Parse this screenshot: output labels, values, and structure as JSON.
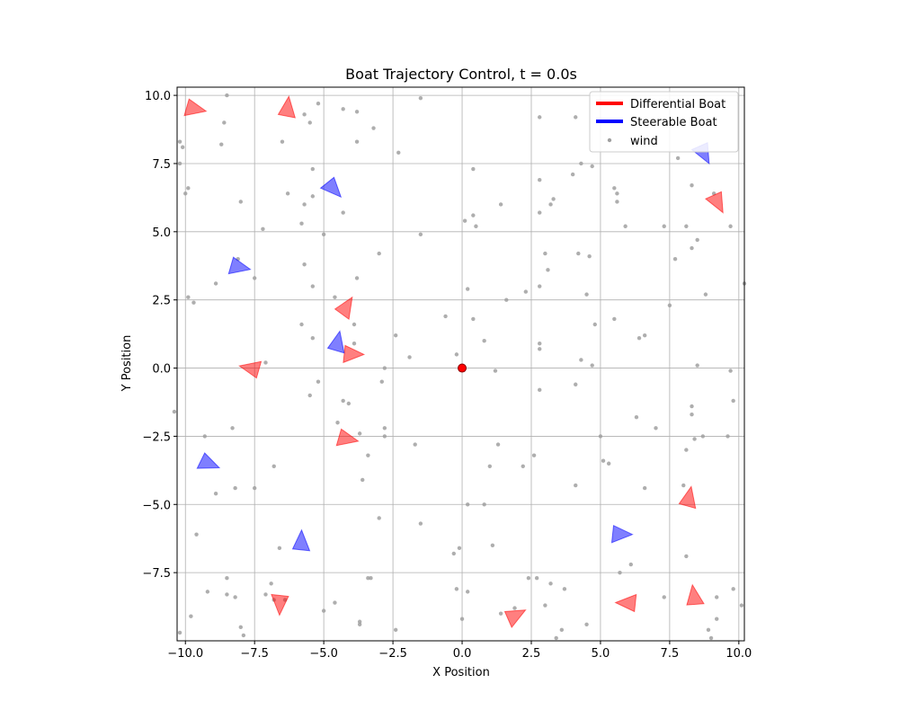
{
  "chart_data": {
    "type": "scatter",
    "title": "Boat Trajectory Control, t = 0.0s",
    "xlabel": "X Position",
    "ylabel": "Y Position",
    "xlim": [
      -10.3,
      10.2
    ],
    "ylim": [
      -10.0,
      10.3
    ],
    "grid": true,
    "xticks": [
      -10,
      -7.5,
      -5,
      -2.5,
      0,
      2.5,
      5,
      7.5,
      10
    ],
    "xtick_labels": [
      "−10.0",
      "−7.5",
      "−5.0",
      "−2.5",
      "0.0",
      "2.5",
      "5.0",
      "7.5",
      "10.0"
    ],
    "yticks": [
      -7.5,
      -5,
      -2.5,
      0,
      2.5,
      5,
      7.5,
      10
    ],
    "ytick_labels": [
      "−7.5",
      "−5.0",
      "−2.5",
      "0.0",
      "2.5",
      "5.0",
      "7.5",
      "10.0"
    ],
    "legend": {
      "placement": "top-right",
      "entries": [
        {
          "label": "Differential Boat",
          "color": "#ff0000",
          "kind": "line"
        },
        {
          "label": "Steerable Boat",
          "color": "#0000ff",
          "kind": "line"
        },
        {
          "label": "wind",
          "color": "#a0a0a0",
          "kind": "point"
        }
      ]
    },
    "origin_marker": {
      "x": 0,
      "y": 0,
      "color": "#ff0000"
    },
    "colors": {
      "differential": "#ff0000",
      "steerable": "#0000ff",
      "wind": "#a0a0a0"
    },
    "series": [
      {
        "name": "Differential Boat",
        "kind": "triangle",
        "points": [
          {
            "x": -9.7,
            "y": 9.5,
            "heading": -10
          },
          {
            "x": -6.3,
            "y": 9.5,
            "heading": 85
          },
          {
            "x": 9.2,
            "y": 6.1,
            "heading": -60
          },
          {
            "x": -4.2,
            "y": 2.2,
            "heading": 60
          },
          {
            "x": -4.0,
            "y": 0.5,
            "heading": 0
          },
          {
            "x": -7.6,
            "y": 0.0,
            "heading": 170
          },
          {
            "x": -4.2,
            "y": -2.6,
            "heading": -10
          },
          {
            "x": 8.2,
            "y": -4.8,
            "heading": 80
          },
          {
            "x": 8.4,
            "y": -8.4,
            "heading": 100
          },
          {
            "x": 6.0,
            "y": -8.6,
            "heading": 180
          },
          {
            "x": 1.9,
            "y": -9.1,
            "heading": 30
          },
          {
            "x": -6.6,
            "y": -8.6,
            "heading": -90
          }
        ]
      },
      {
        "name": "Steerable Boat",
        "kind": "triangle",
        "points": [
          {
            "x": 8.7,
            "y": 7.9,
            "heading": -60
          },
          {
            "x": -4.7,
            "y": 6.6,
            "heading": -45
          },
          {
            "x": -8.1,
            "y": 3.7,
            "heading": -10
          },
          {
            "x": -4.5,
            "y": 0.9,
            "heading": 80
          },
          {
            "x": -9.2,
            "y": -3.5,
            "heading": -20
          },
          {
            "x": -5.8,
            "y": -6.4,
            "heading": 90
          },
          {
            "x": 5.7,
            "y": -6.1,
            "heading": 0
          }
        ]
      },
      {
        "name": "wind",
        "kind": "point",
        "points": [
          {
            "x": -10.2,
            "y": 8.3
          },
          {
            "x": -10.1,
            "y": 8.1
          },
          {
            "x": -10.2,
            "y": 7.5
          },
          {
            "x": -9.9,
            "y": 6.6
          },
          {
            "x": -10.0,
            "y": 6.4
          },
          {
            "x": -8.5,
            "y": 10.0
          },
          {
            "x": -8.6,
            "y": 9.0
          },
          {
            "x": -8.7,
            "y": 8.2
          },
          {
            "x": -7.2,
            "y": 5.1
          },
          {
            "x": -8.0,
            "y": 6.1
          },
          {
            "x": -6.5,
            "y": 8.3
          },
          {
            "x": -5.7,
            "y": 9.3
          },
          {
            "x": -5.5,
            "y": 9.0
          },
          {
            "x": -5.2,
            "y": 9.7
          },
          {
            "x": -4.3,
            "y": 9.5
          },
          {
            "x": -3.8,
            "y": 9.4
          },
          {
            "x": -3.2,
            "y": 8.8
          },
          {
            "x": -3.8,
            "y": 8.3
          },
          {
            "x": -2.3,
            "y": 7.9
          },
          {
            "x": -1.5,
            "y": 9.9
          },
          {
            "x": -5.4,
            "y": 7.3
          },
          {
            "x": -6.3,
            "y": 6.4
          },
          {
            "x": -5.4,
            "y": 6.3
          },
          {
            "x": -5.7,
            "y": 6.0
          },
          {
            "x": -4.3,
            "y": 5.7
          },
          {
            "x": -5.8,
            "y": 5.3
          },
          {
            "x": -5.0,
            "y": 4.9
          },
          {
            "x": -1.5,
            "y": 4.9
          },
          {
            "x": -3.0,
            "y": 4.2
          },
          {
            "x": -8.1,
            "y": 4.0
          },
          {
            "x": -7.5,
            "y": 3.3
          },
          {
            "x": -8.9,
            "y": 3.1
          },
          {
            "x": -9.9,
            "y": 2.6
          },
          {
            "x": -9.7,
            "y": 2.4
          },
          {
            "x": -5.7,
            "y": 3.8
          },
          {
            "x": -3.8,
            "y": 3.3
          },
          {
            "x": -5.4,
            "y": 3.0
          },
          {
            "x": -4.6,
            "y": 2.6
          },
          {
            "x": -5.8,
            "y": 1.6
          },
          {
            "x": -3.9,
            "y": 1.6
          },
          {
            "x": -5.4,
            "y": 1.1
          },
          {
            "x": -2.4,
            "y": 1.2
          },
          {
            "x": -1.9,
            "y": 0.4
          },
          {
            "x": -3.9,
            "y": 0.9
          },
          {
            "x": -7.1,
            "y": 0.2
          },
          {
            "x": -2.8,
            "y": 0.0
          },
          {
            "x": -2.9,
            "y": -0.5
          },
          {
            "x": -5.2,
            "y": -0.5
          },
          {
            "x": -5.5,
            "y": -1.0
          },
          {
            "x": -4.3,
            "y": -1.2
          },
          {
            "x": -4.1,
            "y": -1.3
          },
          {
            "x": -10.4,
            "y": -1.6
          },
          {
            "x": -4.5,
            "y": -2.0
          },
          {
            "x": -8.3,
            "y": -2.2
          },
          {
            "x": -2.8,
            "y": -2.2
          },
          {
            "x": -2.8,
            "y": -2.5
          },
          {
            "x": -3.7,
            "y": -2.4
          },
          {
            "x": -9.3,
            "y": -2.5
          },
          {
            "x": -1.7,
            "y": -2.8
          },
          {
            "x": -3.4,
            "y": -3.2
          },
          {
            "x": -6.8,
            "y": -3.6
          },
          {
            "x": -3.6,
            "y": -4.1
          },
          {
            "x": -7.5,
            "y": -4.4
          },
          {
            "x": -8.2,
            "y": -4.4
          },
          {
            "x": -8.9,
            "y": -4.6
          },
          {
            "x": -3.0,
            "y": -5.5
          },
          {
            "x": -1.5,
            "y": -5.7
          },
          {
            "x": -9.6,
            "y": -6.1
          },
          {
            "x": -6.6,
            "y": -6.6
          },
          {
            "x": -3.4,
            "y": -7.7
          },
          {
            "x": -3.3,
            "y": -7.7
          },
          {
            "x": -8.5,
            "y": -7.7
          },
          {
            "x": -6.9,
            "y": -7.9
          },
          {
            "x": -9.2,
            "y": -8.2
          },
          {
            "x": -8.5,
            "y": -8.3
          },
          {
            "x": -8.2,
            "y": -8.4
          },
          {
            "x": -7.1,
            "y": -8.3
          },
          {
            "x": -6.8,
            "y": -8.5
          },
          {
            "x": -6.4,
            "y": -8.5
          },
          {
            "x": -4.6,
            "y": -8.6
          },
          {
            "x": -9.8,
            "y": -9.1
          },
          {
            "x": -5.0,
            "y": -8.9
          },
          {
            "x": -8.0,
            "y": -9.5
          },
          {
            "x": -3.7,
            "y": -9.3
          },
          {
            "x": -3.7,
            "y": -9.4
          },
          {
            "x": -7.9,
            "y": -9.8
          },
          {
            "x": -10.2,
            "y": -9.7
          },
          {
            "x": -2.4,
            "y": -9.6
          },
          {
            "x": 0.1,
            "y": 5.4
          },
          {
            "x": 0.5,
            "y": 5.2
          },
          {
            "x": 0.4,
            "y": 5.6
          },
          {
            "x": 0.4,
            "y": 7.3
          },
          {
            "x": 1.4,
            "y": 6.0
          },
          {
            "x": 2.8,
            "y": 6.9
          },
          {
            "x": 2.8,
            "y": 5.7
          },
          {
            "x": 3.2,
            "y": 6.0
          },
          {
            "x": 3.3,
            "y": 6.2
          },
          {
            "x": 2.8,
            "y": 9.2
          },
          {
            "x": 4.1,
            "y": 9.2
          },
          {
            "x": 4.0,
            "y": 7.1
          },
          {
            "x": 4.3,
            "y": 7.5
          },
          {
            "x": 4.7,
            "y": 7.4
          },
          {
            "x": 5.5,
            "y": 6.6
          },
          {
            "x": 5.6,
            "y": 6.4
          },
          {
            "x": 5.6,
            "y": 6.1
          },
          {
            "x": 5.9,
            "y": 5.2
          },
          {
            "x": 7.3,
            "y": 5.2
          },
          {
            "x": 8.1,
            "y": 5.2
          },
          {
            "x": 9.7,
            "y": 5.2
          },
          {
            "x": 7.8,
            "y": 7.7
          },
          {
            "x": 7.7,
            "y": 4.0
          },
          {
            "x": 8.5,
            "y": 4.7
          },
          {
            "x": 8.3,
            "y": 4.4
          },
          {
            "x": 8.3,
            "y": 6.7
          },
          {
            "x": 9.1,
            "y": 6.4
          },
          {
            "x": 10.2,
            "y": 3.1
          },
          {
            "x": 8.8,
            "y": 2.7
          },
          {
            "x": 7.5,
            "y": 2.3
          },
          {
            "x": 3.0,
            "y": 4.2
          },
          {
            "x": 4.2,
            "y": 4.2
          },
          {
            "x": 4.6,
            "y": 4.1
          },
          {
            "x": 3.1,
            "y": 3.6
          },
          {
            "x": 2.8,
            "y": 3.0
          },
          {
            "x": 2.3,
            "y": 2.8
          },
          {
            "x": 1.6,
            "y": 2.5
          },
          {
            "x": 4.5,
            "y": 2.7
          },
          {
            "x": 0.2,
            "y": 2.9
          },
          {
            "x": 0.4,
            "y": 1.8
          },
          {
            "x": -0.6,
            "y": 1.9
          },
          {
            "x": 4.8,
            "y": 1.6
          },
          {
            "x": 5.5,
            "y": 1.8
          },
          {
            "x": 6.4,
            "y": 1.1
          },
          {
            "x": 6.6,
            "y": 1.2
          },
          {
            "x": 0.8,
            "y": 1.0
          },
          {
            "x": 2.8,
            "y": 0.9
          },
          {
            "x": 2.8,
            "y": 0.7
          },
          {
            "x": -0.2,
            "y": 0.5
          },
          {
            "x": 4.3,
            "y": 0.3
          },
          {
            "x": 4.7,
            "y": 0.1
          },
          {
            "x": 8.5,
            "y": 0.1
          },
          {
            "x": 9.7,
            "y": -0.1
          },
          {
            "x": 1.2,
            "y": -0.1
          },
          {
            "x": 4.1,
            "y": -0.6
          },
          {
            "x": 2.8,
            "y": -0.8
          },
          {
            "x": 9.8,
            "y": -1.2
          },
          {
            "x": 8.3,
            "y": -1.4
          },
          {
            "x": 8.3,
            "y": -1.7
          },
          {
            "x": 6.3,
            "y": -1.8
          },
          {
            "x": 7.0,
            "y": -2.2
          },
          {
            "x": 8.7,
            "y": -2.5
          },
          {
            "x": 8.4,
            "y": -2.6
          },
          {
            "x": 9.6,
            "y": -2.5
          },
          {
            "x": 5.0,
            "y": -2.5
          },
          {
            "x": 1.3,
            "y": -2.8
          },
          {
            "x": 8.1,
            "y": -3.0
          },
          {
            "x": 2.6,
            "y": -3.2
          },
          {
            "x": 5.1,
            "y": -3.4
          },
          {
            "x": 5.3,
            "y": -3.5
          },
          {
            "x": 1.0,
            "y": -3.6
          },
          {
            "x": 2.2,
            "y": -3.6
          },
          {
            "x": 8.0,
            "y": -4.3
          },
          {
            "x": 4.1,
            "y": -4.3
          },
          {
            "x": 6.6,
            "y": -4.4
          },
          {
            "x": 0.2,
            "y": -5.0
          },
          {
            "x": 0.8,
            "y": -5.0
          },
          {
            "x": 1.1,
            "y": -6.5
          },
          {
            "x": -0.1,
            "y": -6.6
          },
          {
            "x": -0.3,
            "y": -6.8
          },
          {
            "x": 8.1,
            "y": -6.9
          },
          {
            "x": 6.1,
            "y": -7.2
          },
          {
            "x": 5.7,
            "y": -7.5
          },
          {
            "x": 2.4,
            "y": -7.7
          },
          {
            "x": 2.7,
            "y": -7.7
          },
          {
            "x": 3.2,
            "y": -7.9
          },
          {
            "x": 3.7,
            "y": -8.1
          },
          {
            "x": -0.2,
            "y": -8.1
          },
          {
            "x": 0.2,
            "y": -8.2
          },
          {
            "x": 7.3,
            "y": -8.4
          },
          {
            "x": 9.2,
            "y": -8.4
          },
          {
            "x": 9.8,
            "y": -8.1
          },
          {
            "x": 10.1,
            "y": -8.7
          },
          {
            "x": 3.0,
            "y": -8.7
          },
          {
            "x": 1.9,
            "y": -8.8
          },
          {
            "x": 1.4,
            "y": -9.0
          },
          {
            "x": 0.0,
            "y": -9.2
          },
          {
            "x": 9.2,
            "y": -9.2
          },
          {
            "x": 4.5,
            "y": -9.4
          },
          {
            "x": 3.6,
            "y": -9.6
          },
          {
            "x": 8.9,
            "y": -9.6
          },
          {
            "x": 3.4,
            "y": -9.9
          },
          {
            "x": 9.0,
            "y": -9.9
          }
        ]
      }
    ]
  }
}
